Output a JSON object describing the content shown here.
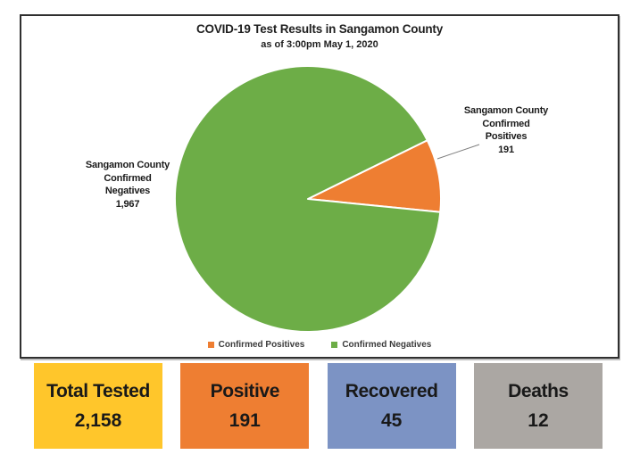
{
  "chart_data": {
    "type": "pie",
    "title": "COVID-19 Test Results in Sangamon County",
    "subtitle": "as of 3:00pm May 1, 2020",
    "legend_position": "bottom",
    "start_angle_deg": 26.2,
    "series": [
      {
        "name": "Confirmed Positives",
        "value": 191,
        "value_label": "191",
        "color": "#EE7E32",
        "callout": [
          "Sangamon County",
          "Confirmed",
          "Positives"
        ]
      },
      {
        "name": "Confirmed Negatives",
        "value": 1967,
        "value_label": "1,967",
        "color": "#6DAD47",
        "callout": [
          "Sangamon County",
          "Confirmed",
          "Negatives"
        ]
      }
    ]
  },
  "stats": {
    "cards": [
      {
        "label": "Total Tested",
        "value": "2,158",
        "color": "#FFC62B"
      },
      {
        "label": "Positive",
        "value": "191",
        "color": "#EE7E32"
      },
      {
        "label": "Recovered",
        "value": "45",
        "color": "#7C93C4"
      },
      {
        "label": "Deaths",
        "value": "12",
        "color": "#ABA7A3"
      }
    ]
  }
}
